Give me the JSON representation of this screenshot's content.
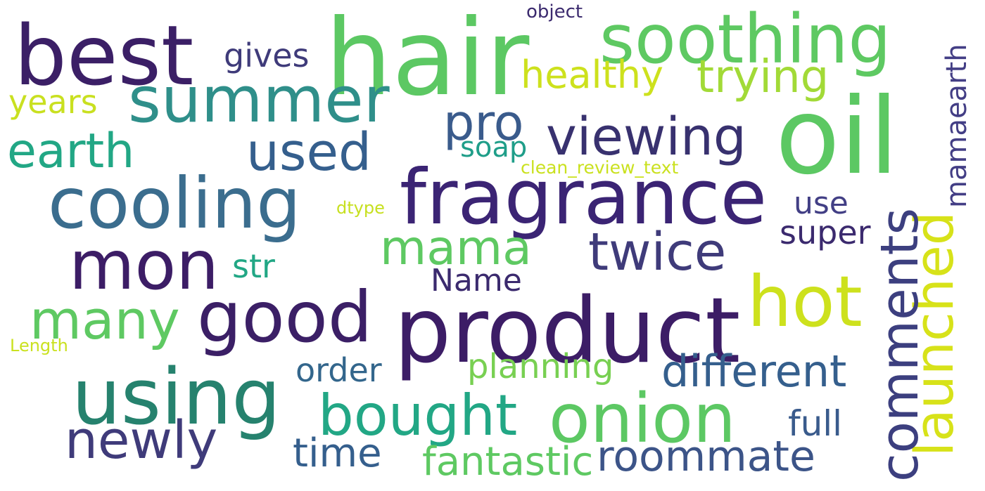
{
  "word_cloud": {
    "background": "#ffffff",
    "words": {
      "hair": "hair",
      "best": "best",
      "soothing": "soothing",
      "summer": "summer",
      "object": "object",
      "gives": "gives",
      "healthy": "healthy",
      "trying": "trying",
      "years": "years",
      "pro": "pro",
      "viewing": "viewing",
      "oil": "oil",
      "earth": "earth",
      "used": "used",
      "soap": "soap",
      "clean_review_text": "clean_review_text",
      "cooling": "cooling",
      "fragrance": "fragrance",
      "dtype": "dtype",
      "mamaearth": "mamaearth",
      "use": "use",
      "super": "super",
      "launched": "launched",
      "mon": "mon",
      "mama": "mama",
      "twice": "twice",
      "str": "str",
      "name": "Name",
      "comments": "comments",
      "hot": "hot",
      "good": "good",
      "product": "product",
      "many": "many",
      "length": "Length",
      "order": "order",
      "planning": "planning",
      "different": "different",
      "using": "using",
      "onion": "onion",
      "bought": "bought",
      "newly": "newly",
      "full": "full",
      "time": "time",
      "fantastic": "fantastic",
      "roommate": "roommate"
    }
  }
}
